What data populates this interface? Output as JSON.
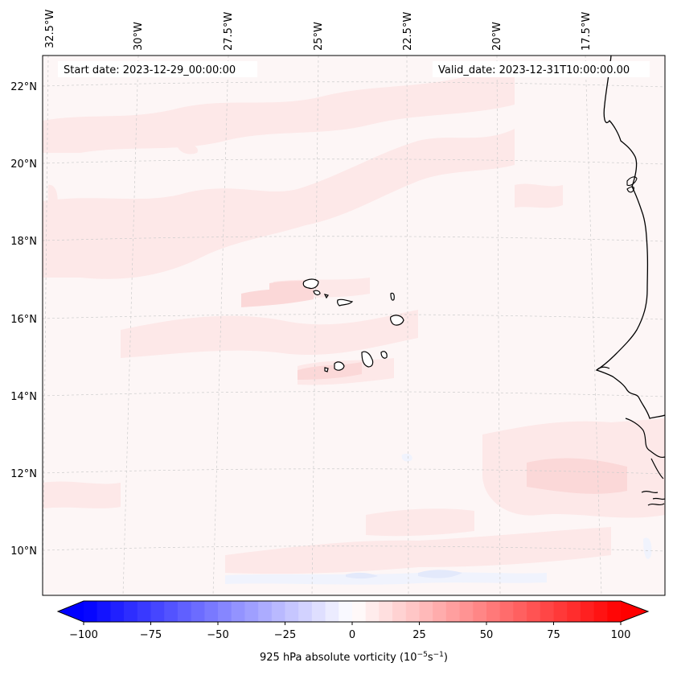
{
  "header": {
    "start_label": "Start date: 2023-12-29_00:00:00",
    "valid_label": "Valid_date: 2023-12-31T10:00:00.00"
  },
  "map": {
    "lon_labels": [
      "32.5°W",
      "30°W",
      "27.5°W",
      "25°W",
      "22.5°W",
      "20°W",
      "17.5°W"
    ],
    "lat_labels": [
      "22°N",
      "20°N",
      "18°N",
      "16°N",
      "14°N",
      "12°N",
      "10°N"
    ],
    "lon_values": [
      -32.5,
      -30,
      -27.5,
      -25,
      -22.5,
      -20,
      -17.5
    ],
    "lat_values": [
      22,
      20,
      18,
      16,
      14,
      12,
      10
    ],
    "field_colors": {
      "background": "#fdf6f6",
      "light_red": "#fde8e8",
      "med_red": "#fbd8d8",
      "light_blue": "#f0f3fd"
    }
  },
  "colorbar": {
    "min": -100,
    "max": 100,
    "step": 5,
    "tick_values": [
      -100,
      -75,
      -50,
      -25,
      0,
      25,
      50,
      75,
      100
    ],
    "tick_labels": [
      "−100",
      "−75",
      "−50",
      "−25",
      "0",
      "25",
      "50",
      "75",
      "100"
    ],
    "label_main": "925 hPa absolute vorticity (10",
    "label_exp1": "−5",
    "label_mid": "s",
    "label_exp2": "−1",
    "label_end": ")",
    "cmap_low": "#0000ff",
    "cmap_mid": "#ffffff",
    "cmap_high": "#ff0000"
  }
}
